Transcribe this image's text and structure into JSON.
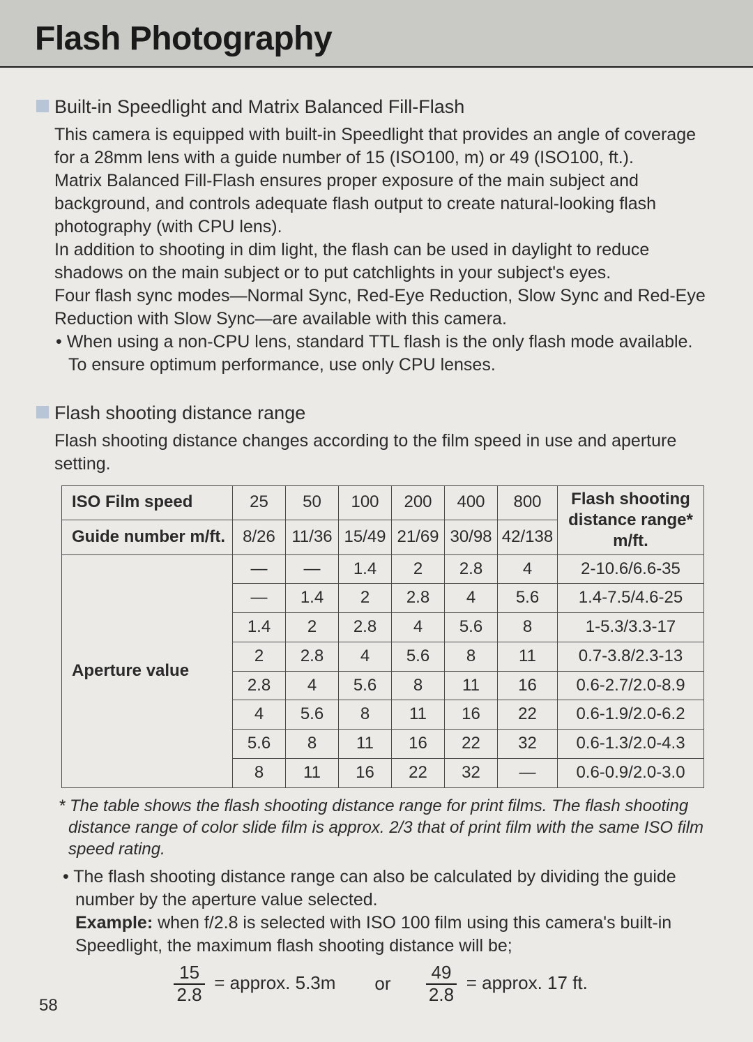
{
  "page": {
    "title": "Flash Photography",
    "number": "58",
    "background_color": "#ebeae6",
    "header_band_color": "#c9c9c5",
    "text_color": "#2a2a2a",
    "bullet_square_color": "#b8c5d6",
    "border_color": "#4a4a4a",
    "title_fontsize": 48,
    "body_fontsize": 25,
    "heading_fontsize": 27,
    "table_fontsize": 24
  },
  "section1": {
    "heading": "Built-in Speedlight and Matrix Balanced Fill-Flash",
    "p1": "This camera is equipped with built-in Speedlight that provides an angle of coverage for a 28mm lens with a guide number of 15 (ISO100, m) or 49 (ISO100, ft.).",
    "p2": "Matrix Balanced Fill-Flash ensures proper exposure of the main subject and background, and controls adequate flash output to create natural-looking flash photography (with CPU lens).",
    "p3": "In addition to shooting in dim light, the flash can be used in daylight to reduce shadows on the main subject or to put catchlights in your subject's eyes.",
    "p4": "Four flash sync modes—Normal Sync, Red-Eye Reduction, Slow Sync and Red-Eye Reduction with Slow Sync—are available with this camera.",
    "note": "• When using a non-CPU lens, standard TTL flash is the only flash mode available. To ensure optimum performance, use only CPU lenses."
  },
  "section2": {
    "heading": "Flash shooting distance range",
    "p1": "Flash shooting distance changes according to the film speed in use and aperture setting."
  },
  "table": {
    "type": "table",
    "row1_label": "ISO Film speed",
    "row2_label": "Guide number  m/ft.",
    "rowspan_label": "Aperture value",
    "right_header_l1": "Flash shooting",
    "right_header_l2": "distance range*",
    "right_header_l3": "m/ft.",
    "iso": [
      "25",
      "50",
      "100",
      "200",
      "400",
      "800"
    ],
    "guide": [
      "8/26",
      "11/36",
      "15/49",
      "21/69",
      "30/98",
      "42/138"
    ],
    "rows": [
      {
        "vals": [
          "—",
          "—",
          "1.4",
          "2",
          "2.8",
          "4"
        ],
        "range": "2-10.6/6.6-35"
      },
      {
        "vals": [
          "—",
          "1.4",
          "2",
          "2.8",
          "4",
          "5.6"
        ],
        "range": "1.4-7.5/4.6-25"
      },
      {
        "vals": [
          "1.4",
          "2",
          "2.8",
          "4",
          "5.6",
          "8"
        ],
        "range": "1-5.3/3.3-17"
      },
      {
        "vals": [
          "2",
          "2.8",
          "4",
          "5.6",
          "8",
          "11"
        ],
        "range": "0.7-3.8/2.3-13"
      },
      {
        "vals": [
          "2.8",
          "4",
          "5.6",
          "8",
          "11",
          "16"
        ],
        "range": "0.6-2.7/2.0-8.9"
      },
      {
        "vals": [
          "4",
          "5.6",
          "8",
          "11",
          "16",
          "22"
        ],
        "range": "0.6-1.9/2.0-6.2"
      },
      {
        "vals": [
          "5.6",
          "8",
          "11",
          "16",
          "22",
          "32"
        ],
        "range": "0.6-1.3/2.0-4.3"
      },
      {
        "vals": [
          "8",
          "11",
          "16",
          "22",
          "32",
          "—"
        ],
        "range": "0.6-0.9/2.0-3.0"
      }
    ]
  },
  "footnote": "*  The table shows the flash shooting distance range for print films. The flash shooting distance range of color slide film is approx. 2/3 that of print film with the same ISO film speed rating.",
  "after": {
    "bullet": "• The flash shooting distance range can also be calculated by dividing the guide number by the aperture value selected.",
    "example_label": "Example:",
    "example_rest": " when f/2.8 is selected with ISO 100 film using this camera's built-in Speedlight, the maximum flash shooting distance will be;"
  },
  "formula": {
    "f1_num": "15",
    "f1_den": "2.8",
    "f1_res": "= approx. 5.3m",
    "or": "or",
    "f2_num": "49",
    "f2_den": "2.8",
    "f2_res": "= approx. 17 ft."
  }
}
